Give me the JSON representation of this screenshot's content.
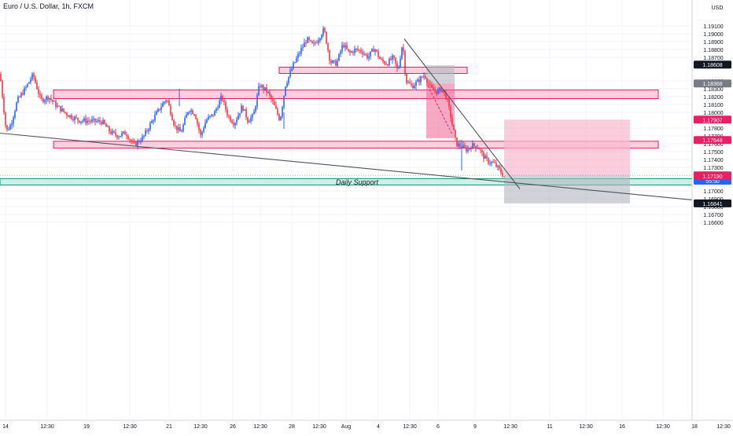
{
  "chart_data": {
    "type": "candlestick",
    "title": "Euro / U.S. Dollar, 1h, FXCM",
    "currency": "USD",
    "ylim": [
      1.1655,
      1.1915
    ],
    "y_ticks": [
      "1.19100",
      "1.19000",
      "1.18900",
      "1.18800",
      "1.18700",
      "1.18400",
      "1.18300",
      "1.18200",
      "1.18100",
      "1.18000",
      "1.17800",
      "1.17700",
      "1.17600",
      "1.17500",
      "1.17400",
      "1.17300",
      "1.17000",
      "1.16900",
      "1.16800",
      "1.16700",
      "1.16600"
    ],
    "y_tick_values": [
      1.191,
      1.19,
      1.189,
      1.188,
      1.187,
      1.184,
      1.183,
      1.182,
      1.181,
      1.18,
      1.178,
      1.177,
      1.176,
      1.175,
      1.174,
      1.173,
      1.17,
      1.169,
      1.168,
      1.167,
      1.166
    ],
    "price_labels": [
      {
        "value": 1.18608,
        "text": "1.18608",
        "bg": "#131722",
        "fg": "#ffffff"
      },
      {
        "value": 1.18368,
        "text": "1.18368",
        "bg": "#787b86",
        "fg": "#ffffff"
      },
      {
        "value": 1.17907,
        "text": "1.17907",
        "bg": "#e91e63",
        "fg": "#ffffff"
      },
      {
        "value": 1.17648,
        "text": "1.17648",
        "bg": "#e91e63",
        "fg": "#ffffff"
      },
      {
        "value": 1.17198,
        "text": "1.17198",
        "bg": "#2962ff",
        "fg": "#ffffff"
      },
      {
        "value": 1.1713,
        "text": "55:50",
        "bg": "#2962ff",
        "fg": "#ffffff"
      },
      {
        "value": 1.1719,
        "text": "1.17190",
        "bg": "#e91e63",
        "fg": "#ffffff"
      },
      {
        "value": 1.16841,
        "text": "1.16841",
        "bg": "#131722",
        "fg": "#ffffff"
      }
    ],
    "x_ticks": [
      "14",
      "12:30",
      "19",
      "12:30",
      "21",
      "12:30",
      "26",
      "12:30",
      "28",
      "12:30",
      "Aug",
      "4",
      "12:30",
      "6",
      "9",
      "12:30",
      "11",
      "12:30",
      "16",
      "12:30",
      "18",
      "12:30"
    ],
    "key_prices": [
      {
        "t": 0,
        "p": 1.1849
      },
      {
        "t": 8,
        "p": 1.1775
      },
      {
        "t": 14,
        "p": 1.1785
      },
      {
        "t": 22,
        "p": 1.1815
      },
      {
        "t": 32,
        "p": 1.183
      },
      {
        "t": 42,
        "p": 1.1848
      },
      {
        "t": 52,
        "p": 1.1815
      },
      {
        "t": 62,
        "p": 1.182
      },
      {
        "t": 72,
        "p": 1.1808
      },
      {
        "t": 86,
        "p": 1.1797
      },
      {
        "t": 100,
        "p": 1.179
      },
      {
        "t": 115,
        "p": 1.1789
      },
      {
        "t": 130,
        "p": 1.1788
      },
      {
        "t": 140,
        "p": 1.1775
      },
      {
        "t": 150,
        "p": 1.177
      },
      {
        "t": 160,
        "p": 1.1774
      },
      {
        "t": 170,
        "p": 1.1758
      },
      {
        "t": 182,
        "p": 1.1768
      },
      {
        "t": 195,
        "p": 1.1792
      },
      {
        "t": 205,
        "p": 1.1808
      },
      {
        "t": 212,
        "p": 1.1818
      },
      {
        "t": 222,
        "p": 1.1783
      },
      {
        "t": 230,
        "p": 1.1774
      },
      {
        "t": 240,
        "p": 1.1805
      },
      {
        "t": 248,
        "p": 1.1798
      },
      {
        "t": 255,
        "p": 1.177
      },
      {
        "t": 262,
        "p": 1.179
      },
      {
        "t": 272,
        "p": 1.1798
      },
      {
        "t": 282,
        "p": 1.182
      },
      {
        "t": 290,
        "p": 1.1795
      },
      {
        "t": 298,
        "p": 1.1786
      },
      {
        "t": 308,
        "p": 1.1808
      },
      {
        "t": 315,
        "p": 1.179
      },
      {
        "t": 322,
        "p": 1.1795
      },
      {
        "t": 330,
        "p": 1.1835
      },
      {
        "t": 340,
        "p": 1.1826
      },
      {
        "t": 348,
        "p": 1.181
      },
      {
        "t": 356,
        "p": 1.179
      },
      {
        "t": 363,
        "p": 1.1835
      },
      {
        "t": 372,
        "p": 1.1858
      },
      {
        "t": 382,
        "p": 1.1878
      },
      {
        "t": 390,
        "p": 1.1893
      },
      {
        "t": 398,
        "p": 1.1885
      },
      {
        "t": 405,
        "p": 1.1894
      },
      {
        "t": 412,
        "p": 1.1906
      },
      {
        "t": 420,
        "p": 1.1864
      },
      {
        "t": 428,
        "p": 1.1862
      },
      {
        "t": 436,
        "p": 1.1887
      },
      {
        "t": 444,
        "p": 1.1875
      },
      {
        "t": 452,
        "p": 1.188
      },
      {
        "t": 460,
        "p": 1.1878
      },
      {
        "t": 468,
        "p": 1.187
      },
      {
        "t": 476,
        "p": 1.1882
      },
      {
        "t": 484,
        "p": 1.1866
      },
      {
        "t": 492,
        "p": 1.1862
      },
      {
        "t": 500,
        "p": 1.187
      },
      {
        "t": 506,
        "p": 1.1852
      },
      {
        "t": 512,
        "p": 1.189
      },
      {
        "t": 516,
        "p": 1.184
      },
      {
        "t": 524,
        "p": 1.1833
      },
      {
        "t": 532,
        "p": 1.184
      },
      {
        "t": 540,
        "p": 1.1848
      },
      {
        "t": 548,
        "p": 1.183
      },
      {
        "t": 556,
        "p": 1.1826
      },
      {
        "t": 562,
        "p": 1.183
      },
      {
        "t": 568,
        "p": 1.1818
      },
      {
        "t": 574,
        "p": 1.179
      },
      {
        "t": 580,
        "p": 1.176
      },
      {
        "t": 586,
        "p": 1.1757
      },
      {
        "t": 594,
        "p": 1.1752
      },
      {
        "t": 600,
        "p": 1.1758
      },
      {
        "t": 608,
        "p": 1.1756
      },
      {
        "t": 614,
        "p": 1.1745
      },
      {
        "t": 620,
        "p": 1.1738
      },
      {
        "t": 628,
        "p": 1.1735
      },
      {
        "t": 634,
        "p": 1.1728
      },
      {
        "t": 641,
        "p": 1.1718
      }
    ],
    "zones": [
      {
        "name": "resistance-zone-top",
        "x1": 355,
        "x2": 594,
        "top": 1.18575,
        "bottom": 1.18495,
        "fill": "#f8bbd0",
        "stroke": "#e91e63"
      },
      {
        "name": "resistance-zone-mid",
        "x1": 68,
        "x2": 837,
        "top": 1.18285,
        "bottom": 1.18175,
        "fill": "#f8bbd0",
        "stroke": "#e91e63"
      },
      {
        "name": "support-zone-lower",
        "x1": 68,
        "x2": 837,
        "top": 1.17632,
        "bottom": 1.17545,
        "fill": "#f8bbd0",
        "stroke": "#e91e63"
      },
      {
        "name": "daily-support-zone",
        "x1": 0,
        "x2": 880,
        "top": 1.17155,
        "bottom": 1.17075,
        "fill": "#c8ebe4",
        "stroke": "#089981"
      }
    ],
    "daily_support_label": "Daily Support",
    "trendlines": [
      {
        "name": "falling-trendline",
        "x1": 514,
        "p1": 1.18935,
        "x2": 661,
        "p2": 1.17025
      },
      {
        "name": "long-descending-line",
        "x1": 0,
        "p1": 1.17735,
        "x2": 932,
        "p2": 1.16835
      }
    ],
    "position": {
      "x1": 641,
      "x2": 801,
      "entry": 1.17198,
      "target": 1.17907,
      "stop": 1.16841
    },
    "past_move": {
      "x1": 542,
      "x2": 578,
      "grey_top": 1.186,
      "grey_bottom": 1.18368,
      "red_top": 1.18368,
      "red_bottom": 1.1767
    },
    "colors": {
      "up": "#2962ff",
      "down": "#f23645",
      "grid": "#f0f3fa",
      "axis_text": "#131722"
    }
  }
}
